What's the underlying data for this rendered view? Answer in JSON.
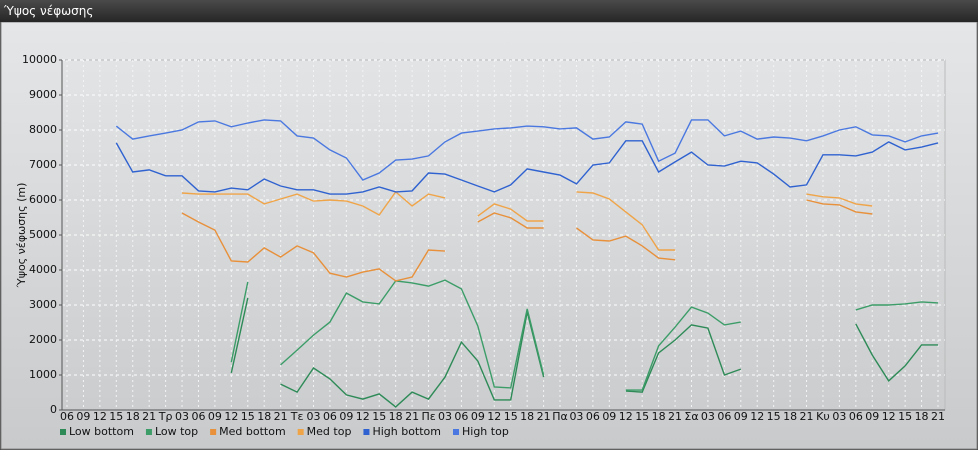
{
  "window_title": "Ύψος νέφωσης",
  "chart_data": {
    "type": "line",
    "y_label": "Ύψος νέφωσης (m)",
    "categories": [
      "06",
      "09",
      "12",
      "15",
      "18",
      "21",
      "Τρ",
      "03",
      "06",
      "09",
      "12",
      "15",
      "18",
      "21",
      "Τε",
      "03",
      "06",
      "09",
      "12",
      "15",
      "18",
      "21",
      "Πε",
      "03",
      "06",
      "09",
      "12",
      "15",
      "18",
      "21",
      "Πα",
      "03",
      "06",
      "09",
      "12",
      "15",
      "18",
      "21",
      "Σα",
      "03",
      "06",
      "09",
      "12",
      "15",
      "18",
      "21",
      "Κυ",
      "03",
      "06",
      "09",
      "12",
      "15",
      "18",
      "21"
    ],
    "ylim": [
      0,
      10000
    ],
    "yticks": [
      0,
      1000,
      2000,
      3000,
      4000,
      5000,
      6000,
      7000,
      8000,
      9000,
      10000
    ],
    "grid": true,
    "legend_position": "bottom-left",
    "series": [
      {
        "name": "Low bottom",
        "color": "#2e8b57",
        "values": [
          null,
          null,
          null,
          null,
          null,
          null,
          null,
          null,
          null,
          null,
          1060,
          3200,
          null,
          740,
          510,
          1200,
          890,
          430,
          310,
          460,
          90,
          510,
          310,
          940,
          1940,
          1400,
          290,
          290,
          2800,
          940,
          null,
          null,
          null,
          null,
          540,
          510,
          1630,
          2000,
          2430,
          2340,
          1000,
          1170,
          null,
          null,
          null,
          null,
          null,
          null,
          2460,
          1570,
          830,
          1260,
          1860,
          1860
        ]
      },
      {
        "name": "Low top",
        "color": "#3c9d68",
        "values": [
          null,
          null,
          null,
          null,
          null,
          null,
          null,
          null,
          null,
          null,
          1370,
          3660,
          null,
          1290,
          1710,
          2140,
          2510,
          3340,
          3090,
          3030,
          3690,
          3630,
          3540,
          3710,
          3460,
          2400,
          660,
          630,
          2890,
          1000,
          null,
          null,
          null,
          null,
          570,
          570,
          1830,
          2370,
          2940,
          2770,
          2430,
          2510,
          null,
          null,
          null,
          null,
          null,
          null,
          2860,
          3000,
          3000,
          3030,
          3090,
          3060
        ]
      },
      {
        "name": "Med bottom",
        "color": "#e8903a",
        "values": [
          null,
          null,
          null,
          null,
          null,
          null,
          null,
          5630,
          5370,
          5140,
          4260,
          4230,
          4630,
          4370,
          4690,
          4490,
          3910,
          3800,
          3940,
          4030,
          3690,
          3800,
          4570,
          4540,
          null,
          5370,
          5630,
          5490,
          5200,
          5200,
          null,
          5200,
          4860,
          4830,
          4970,
          4690,
          4340,
          4290,
          null,
          null,
          null,
          null,
          null,
          null,
          null,
          6000,
          5890,
          5860,
          5660,
          5600,
          null,
          null,
          null,
          null
        ]
      },
      {
        "name": "Med top",
        "color": "#f0a448",
        "values": [
          null,
          null,
          null,
          null,
          null,
          null,
          null,
          6200,
          6170,
          6170,
          6170,
          6170,
          5890,
          6030,
          6170,
          5970,
          6000,
          5970,
          5830,
          5570,
          6230,
          5830,
          6170,
          6060,
          null,
          5540,
          5890,
          5740,
          5400,
          5400,
          null,
          6230,
          6200,
          6030,
          5660,
          5290,
          4570,
          4570,
          null,
          null,
          null,
          null,
          null,
          null,
          null,
          6170,
          6090,
          6060,
          5890,
          5830,
          null,
          null,
          null,
          null
        ]
      },
      {
        "name": "High bottom",
        "color": "#2f62d0",
        "values": [
          null,
          null,
          null,
          7630,
          6800,
          6860,
          6690,
          6690,
          6260,
          6230,
          6340,
          6290,
          6600,
          6400,
          6290,
          6290,
          6170,
          6170,
          6230,
          6370,
          6230,
          6260,
          6770,
          6740,
          6570,
          6400,
          6230,
          6430,
          6890,
          6800,
          6710,
          6460,
          7000,
          7060,
          7690,
          7690,
          6800,
          7090,
          7370,
          7000,
          6970,
          7110,
          7060,
          6740,
          6370,
          6430,
          7290,
          7290,
          7260,
          7370,
          7660,
          7430,
          7510,
          7630
        ]
      },
      {
        "name": "High top",
        "color": "#4a78e0",
        "values": [
          null,
          null,
          null,
          8110,
          7740,
          7830,
          7910,
          8000,
          8230,
          8260,
          8090,
          8200,
          8290,
          8260,
          7830,
          7770,
          7430,
          7200,
          6570,
          6770,
          7140,
          7170,
          7260,
          7660,
          7910,
          7970,
          8030,
          8060,
          8110,
          8090,
          8030,
          8060,
          7740,
          7800,
          8230,
          8170,
          7110,
          7340,
          8290,
          8290,
          7830,
          7970,
          7740,
          7800,
          7770,
          7690,
          7830,
          8000,
          8090,
          7860,
          7830,
          7660,
          7830,
          7910
        ]
      }
    ]
  }
}
